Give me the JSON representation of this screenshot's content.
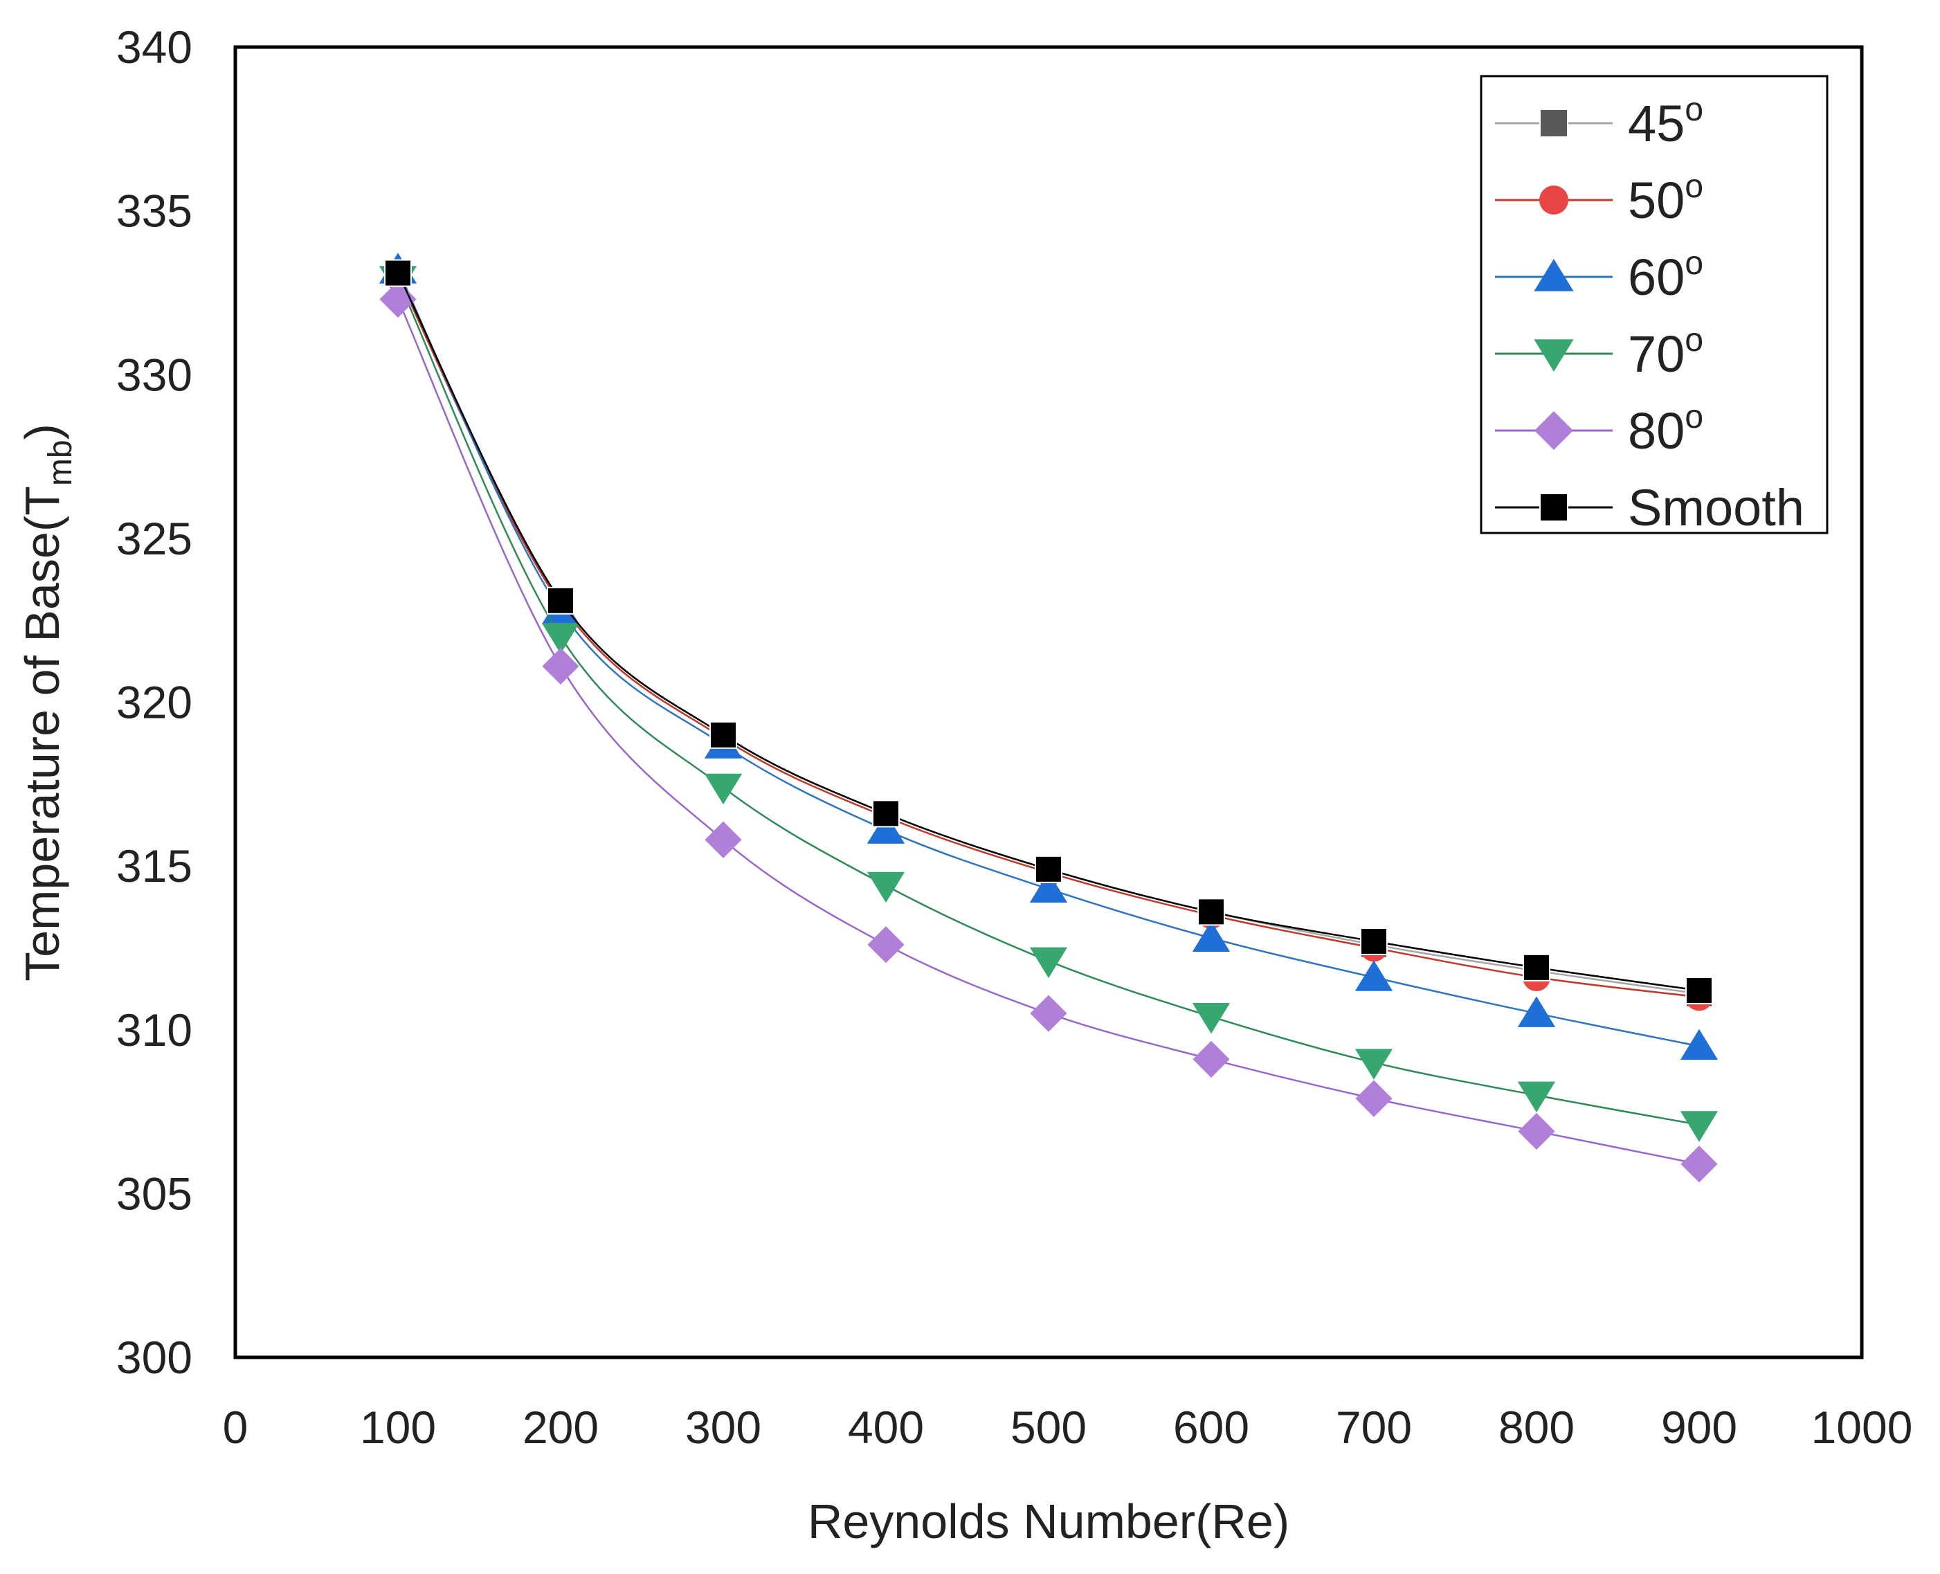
{
  "chart_data": {
    "type": "line",
    "title": "",
    "xlabel": "Reynolds Number(Re)",
    "ylabel_main": "Temperature of Base(T",
    "ylabel_sub": "mb",
    "ylabel_close": ")",
    "xlim": [
      0,
      1000
    ],
    "ylim": [
      300,
      340
    ],
    "xticks": [
      0,
      100,
      200,
      300,
      400,
      500,
      600,
      700,
      800,
      900,
      1000
    ],
    "yticks": [
      300,
      305,
      310,
      315,
      320,
      325,
      330,
      335,
      340
    ],
    "grid": false,
    "legend_position": "top-right",
    "x": [
      100,
      200,
      300,
      400,
      500,
      600,
      700,
      800,
      900
    ],
    "series": [
      {
        "name": "45",
        "degree": "o",
        "marker": "square",
        "color": "#595959",
        "line_color": "#a6a6a6",
        "values": [
          333.1,
          323.1,
          319.0,
          316.6,
          314.9,
          313.6,
          312.6,
          311.8,
          311.1
        ]
      },
      {
        "name": "50",
        "degree": "o",
        "marker": "circle",
        "color": "#e84545",
        "line_color": "#c0392b",
        "values": [
          333.0,
          323.0,
          318.9,
          316.5,
          314.8,
          313.5,
          312.5,
          311.6,
          311.0
        ]
      },
      {
        "name": "60",
        "degree": "o",
        "marker": "triangle-up",
        "color": "#1f6fd6",
        "line_color": "#2f74c0",
        "values": [
          333.2,
          322.8,
          318.7,
          316.1,
          314.3,
          312.8,
          311.6,
          310.5,
          309.5
        ]
      },
      {
        "name": "70",
        "degree": "o",
        "marker": "triangle-down",
        "color": "#37a76f",
        "line_color": "#2e8b57",
        "values": [
          332.9,
          322.0,
          317.4,
          314.4,
          312.1,
          310.4,
          309.0,
          308.0,
          307.1
        ]
      },
      {
        "name": "80",
        "degree": "o",
        "marker": "diamond",
        "color": "#b07fd9",
        "line_color": "#9966cc",
        "values": [
          332.3,
          321.1,
          315.8,
          312.6,
          310.5,
          309.1,
          307.9,
          306.9,
          305.9
        ]
      },
      {
        "name": "Smooth",
        "degree": "",
        "marker": "square",
        "color": "#000000",
        "line_color": "#000000",
        "values": [
          333.1,
          323.1,
          319.0,
          316.6,
          314.9,
          313.6,
          312.7,
          311.9,
          311.2
        ]
      }
    ]
  }
}
